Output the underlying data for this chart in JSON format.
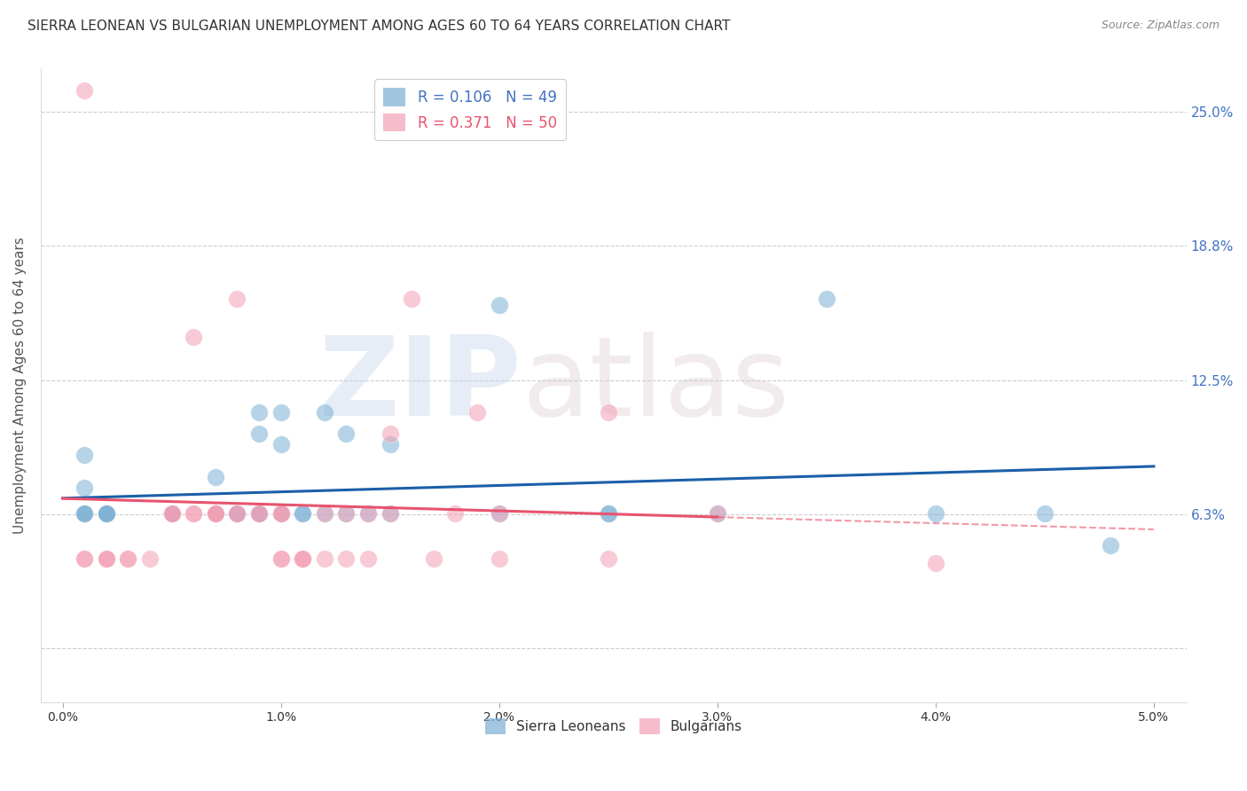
{
  "title": "SIERRA LEONEAN VS BULGARIAN UNEMPLOYMENT AMONG AGES 60 TO 64 YEARS CORRELATION CHART",
  "source": "Source: ZipAtlas.com",
  "ylabel": "Unemployment Among Ages 60 to 64 years",
  "xlabel_ticks": [
    0.0,
    1.0,
    2.0,
    3.0,
    4.0,
    5.0
  ],
  "ytick_positions": [
    0.0,
    0.0625,
    0.125,
    0.1875,
    0.25
  ],
  "ytick_labels": [
    "",
    "6.3%",
    "12.5%",
    "18.8%",
    "25.0%"
  ],
  "xlim": [
    -0.001,
    0.052
  ],
  "ylim": [
    -0.025,
    0.27
  ],
  "watermark_zip": "ZIP",
  "watermark_atlas": "atlas",
  "sierra_color": "#7bafd4",
  "bulgarian_color": "#f4a0b5",
  "sierra_line_color": "#1a5fa8",
  "bulgarian_line_color": "#e8536e",
  "grid_color": "#cccccc",
  "background_color": "#ffffff",
  "title_fontsize": 11,
  "axis_tick_fontsize": 10,
  "sierra_x": [
    0.001,
    0.001,
    0.001,
    0.001,
    0.001,
    0.002,
    0.002,
    0.002,
    0.002,
    0.005,
    0.005,
    0.005,
    0.005,
    0.005,
    0.005,
    0.007,
    0.007,
    0.007,
    0.007,
    0.008,
    0.008,
    0.008,
    0.009,
    0.009,
    0.009,
    0.009,
    0.009,
    0.01,
    0.01,
    0.01,
    0.01,
    0.011,
    0.011,
    0.012,
    0.012,
    0.013,
    0.013,
    0.014,
    0.015,
    0.015,
    0.02,
    0.02,
    0.025,
    0.025,
    0.03,
    0.035,
    0.04,
    0.045,
    0.048
  ],
  "sierra_y": [
    0.063,
    0.063,
    0.063,
    0.075,
    0.09,
    0.063,
    0.063,
    0.063,
    0.063,
    0.063,
    0.063,
    0.063,
    0.063,
    0.063,
    0.063,
    0.063,
    0.063,
    0.063,
    0.08,
    0.063,
    0.063,
    0.063,
    0.063,
    0.063,
    0.063,
    0.1,
    0.11,
    0.063,
    0.063,
    0.11,
    0.095,
    0.063,
    0.063,
    0.063,
    0.11,
    0.063,
    0.1,
    0.063,
    0.063,
    0.095,
    0.063,
    0.16,
    0.063,
    0.063,
    0.063,
    0.163,
    0.063,
    0.063,
    0.048
  ],
  "bulgarian_x": [
    0.001,
    0.001,
    0.001,
    0.002,
    0.002,
    0.002,
    0.003,
    0.003,
    0.004,
    0.005,
    0.005,
    0.005,
    0.006,
    0.006,
    0.006,
    0.007,
    0.007,
    0.007,
    0.007,
    0.008,
    0.008,
    0.008,
    0.009,
    0.009,
    0.01,
    0.01,
    0.01,
    0.01,
    0.01,
    0.011,
    0.011,
    0.011,
    0.012,
    0.012,
    0.013,
    0.013,
    0.014,
    0.014,
    0.015,
    0.015,
    0.016,
    0.017,
    0.018,
    0.019,
    0.02,
    0.02,
    0.025,
    0.025,
    0.03,
    0.04
  ],
  "bulgarian_y": [
    0.042,
    0.042,
    0.26,
    0.042,
    0.042,
    0.042,
    0.042,
    0.042,
    0.042,
    0.063,
    0.063,
    0.063,
    0.063,
    0.063,
    0.145,
    0.063,
    0.063,
    0.063,
    0.063,
    0.063,
    0.063,
    0.163,
    0.063,
    0.063,
    0.042,
    0.042,
    0.063,
    0.063,
    0.063,
    0.042,
    0.042,
    0.042,
    0.042,
    0.063,
    0.042,
    0.063,
    0.042,
    0.063,
    0.063,
    0.1,
    0.163,
    0.042,
    0.063,
    0.11,
    0.042,
    0.063,
    0.11,
    0.042,
    0.063,
    0.04
  ]
}
